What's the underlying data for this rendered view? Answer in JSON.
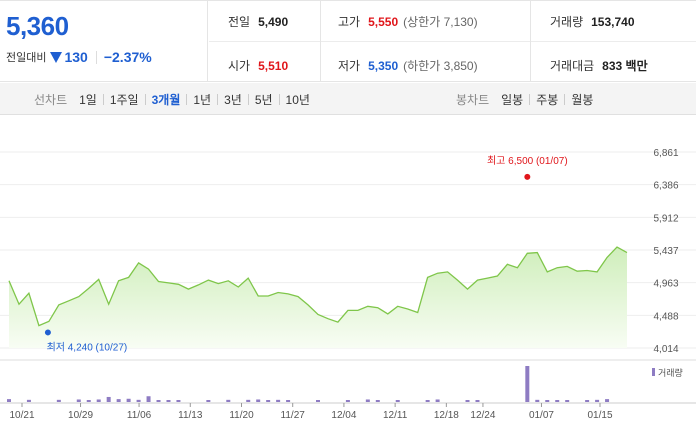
{
  "quote": {
    "price": "5,360",
    "change_label": "전일대비",
    "change_amount": "130",
    "change_pct": "−2.37%"
  },
  "stats": {
    "prev_close": {
      "label": "전일",
      "value": "5,490"
    },
    "high": {
      "label": "고가",
      "value": "5,550",
      "note": "(상한가 7,130)"
    },
    "volume": {
      "label": "거래량",
      "value": "153,740"
    },
    "open": {
      "label": "시가",
      "value": "5,510"
    },
    "low": {
      "label": "저가",
      "value": "5,350",
      "note": "(하한가 3,850)"
    },
    "trade_value": {
      "label": "거래대금",
      "value": "833 백만"
    }
  },
  "line_tabs": {
    "title": "선차트",
    "items": [
      "1일",
      "1주일",
      "3개월",
      "1년",
      "3년",
      "5년",
      "10년"
    ],
    "active": "3개월"
  },
  "candle_tabs": {
    "title": "봉차트",
    "items": [
      "일봉",
      "주봉",
      "월봉"
    ]
  },
  "colors": {
    "up": "#e0161b",
    "down": "#1f5fd1",
    "line": "#7fc64a",
    "volume": "#8e7cc3"
  },
  "chart_data": {
    "type": "area",
    "price_ticks": [
      "6,861",
      "6,386",
      "5,912",
      "5,437",
      "4,963",
      "4,488",
      "4,014"
    ],
    "ylim": [
      4014,
      6861
    ],
    "date_ticks": [
      "10/21",
      "10/29",
      "11/06",
      "11/13",
      "11/20",
      "11/27",
      "12/04",
      "12/11",
      "12/18",
      "12/24",
      "01/07",
      "01/15"
    ],
    "prices": [
      4990,
      4650,
      4810,
      4340,
      4400,
      4640,
      4700,
      4760,
      4880,
      5010,
      4650,
      4990,
      5040,
      5250,
      5160,
      4980,
      4960,
      4940,
      4870,
      4930,
      5000,
      4950,
      4990,
      4900,
      5030,
      4770,
      4770,
      4820,
      4800,
      4760,
      4640,
      4500,
      4440,
      4390,
      4560,
      4560,
      4620,
      4600,
      4510,
      4620,
      4580,
      4530,
      5040,
      5100,
      5120,
      5000,
      4870,
      5000,
      5030,
      5060,
      5230,
      5180,
      5390,
      5400,
      5120,
      5180,
      5200,
      5130,
      5140,
      5120,
      5330,
      5480,
      5400
    ],
    "volumes": [
      8,
      0,
      6,
      0,
      0,
      6,
      0,
      7,
      5,
      7,
      14,
      8,
      9,
      6,
      16,
      5,
      5,
      5,
      0,
      0,
      5,
      0,
      6,
      0,
      6,
      7,
      5,
      6,
      5,
      0,
      0,
      5,
      0,
      0,
      5,
      0,
      7,
      5,
      0,
      5,
      0,
      0,
      5,
      7,
      0,
      0,
      5,
      5,
      0,
      0,
      0,
      0,
      100,
      6,
      5,
      5,
      5,
      0,
      5,
      6,
      8,
      0,
      0
    ],
    "high_marker": {
      "label": "최고 6,500 (01/07)",
      "value": 6500,
      "index": 52
    },
    "low_marker": {
      "label": "최저 4,240 (10/27)",
      "value": 4240,
      "index": 3
    },
    "volume_label": "거래량"
  }
}
